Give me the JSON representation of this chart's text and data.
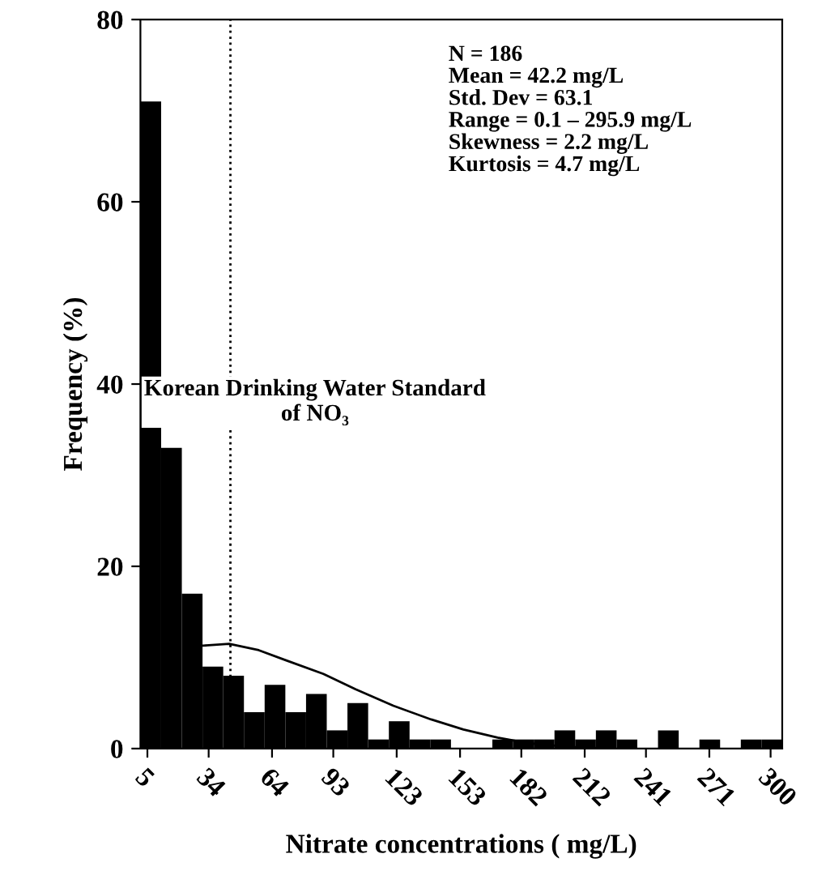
{
  "chart_data": {
    "type": "histogram",
    "xlabel": "Nitrate concentrations ( mg/L)",
    "ylabel": "Frequency (%)",
    "bins": [
      1.7,
      11.5,
      21.3,
      31.1,
      40.9,
      50.7,
      60.5,
      70.3,
      80.1,
      89.9,
      99.7,
      109.5,
      119.3,
      129.1,
      138.9,
      148.7,
      158.5,
      168.3,
      178.1,
      187.9,
      197.7,
      207.5,
      217.3,
      227.1,
      236.9,
      246.7,
      256.5,
      266.3,
      276.1,
      285.9,
      295.7,
      305.5
    ],
    "values": [
      71,
      33,
      17,
      9,
      8,
      4,
      7,
      4,
      6,
      2,
      5,
      1,
      3,
      1,
      1,
      0,
      0,
      1,
      1,
      1,
      2,
      1,
      2,
      1,
      0,
      2,
      0,
      1,
      0,
      1,
      1
    ],
    "color": "#000000",
    "series": [
      {
        "type": "line",
        "color": "#000000",
        "x": [
          31.5,
          43.7,
          57.7,
          70.5,
          88.3,
          103.6,
          121.4,
          139.3,
          154.6,
          170.8,
          185.1,
          203,
          223
        ],
        "values": [
          11.3,
          11.5,
          10.8,
          9.7,
          8.2,
          6.5,
          4.7,
          3.2,
          2.1,
          1.2,
          0.6,
          0.2,
          0
        ]
      }
    ],
    "xlim": [
      1.7,
      305.5
    ],
    "xticks": [
      5,
      34,
      64,
      93,
      123,
      153,
      182,
      212,
      241,
      271,
      300
    ],
    "ylim": [
      0,
      80
    ],
    "yticks": [
      0,
      20,
      40,
      60,
      80
    ],
    "ref_lines": [
      {
        "axis": "x",
        "value": 44.3,
        "label": "Korean Drinking Water Standard\nof NO₃",
        "line_style": "dotted",
        "color": "#000000"
      }
    ],
    "annotations": [
      "N = 186\nMean = 42.2 mg/L\nStd. Dev = 63.1\nRange = 0.1 – 295.9 mg/L\nSkewness = 2.2 mg/L\nKurtosis = 4.7 mg/L"
    ],
    "grid": false,
    "legend": false
  }
}
